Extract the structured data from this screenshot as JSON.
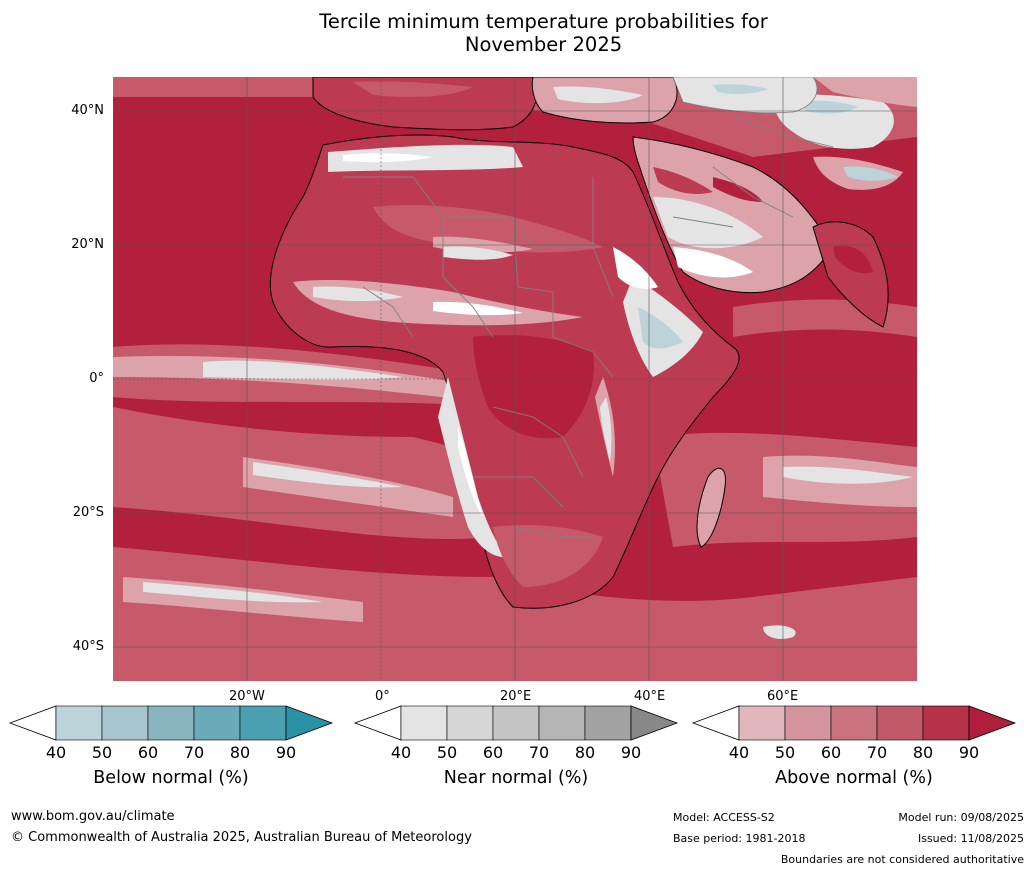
{
  "title_line1": "Tercile minimum temperature probabilities for",
  "title_line2": "November 2025",
  "lat_labels": [
    "40°N",
    "20°N",
    "0°",
    "20°S",
    "40°S"
  ],
  "lon_labels": [
    "20°W",
    "0°",
    "20°E",
    "40°E",
    "60°E"
  ],
  "colorbars": [
    {
      "title": "Below normal (%)",
      "ticks": [
        "40",
        "50",
        "60",
        "70",
        "80",
        "90"
      ],
      "colors": [
        "#ffffff",
        "#bcd3da",
        "#a6c5cc",
        "#89b5c1",
        "#6aaab9",
        "#4a9fb1",
        "#2b91a6"
      ]
    },
    {
      "title": "Near normal (%)",
      "ticks": [
        "40",
        "50",
        "60",
        "70",
        "80",
        "90"
      ],
      "colors": [
        "#ffffff",
        "#e4e4e4",
        "#d6d6d6",
        "#c5c5c5",
        "#b5b5b5",
        "#a2a2a2",
        "#888888"
      ]
    },
    {
      "title": "Above normal (%)",
      "ticks": [
        "40",
        "50",
        "60",
        "70",
        "80",
        "90"
      ],
      "colors": [
        "#ffffff",
        "#e1b6bd",
        "#d4959f",
        "#c97380",
        "#c05a6a",
        "#b63249",
        "#b01e3c"
      ]
    }
  ],
  "footer": {
    "website": "www.bom.gov.au/climate",
    "copyright": "© Commonwealth of Australia 2025, Australian Bureau of Meteorology",
    "model": "Model: ACCESS-S2",
    "base_period": "Base period: 1981-2018",
    "model_run": "Model run: 09/08/2025",
    "issued": "Issued: 11/08/2025",
    "disclaimer": "Boundaries are not considered authoritative"
  },
  "map_colors": {
    "ocean_deep": "#b2203e",
    "above_80": "#bc3a52",
    "above_70": "#c65a6b",
    "above_60": "#cf7b88",
    "above_50": "#dca3ab",
    "near_light": "#e4e4e4",
    "near_mid": "#d3d3d3",
    "below_light": "#bcd3da",
    "white": "#ffffff",
    "coast": "#000000",
    "border": "#808080",
    "grid": "#555555"
  }
}
